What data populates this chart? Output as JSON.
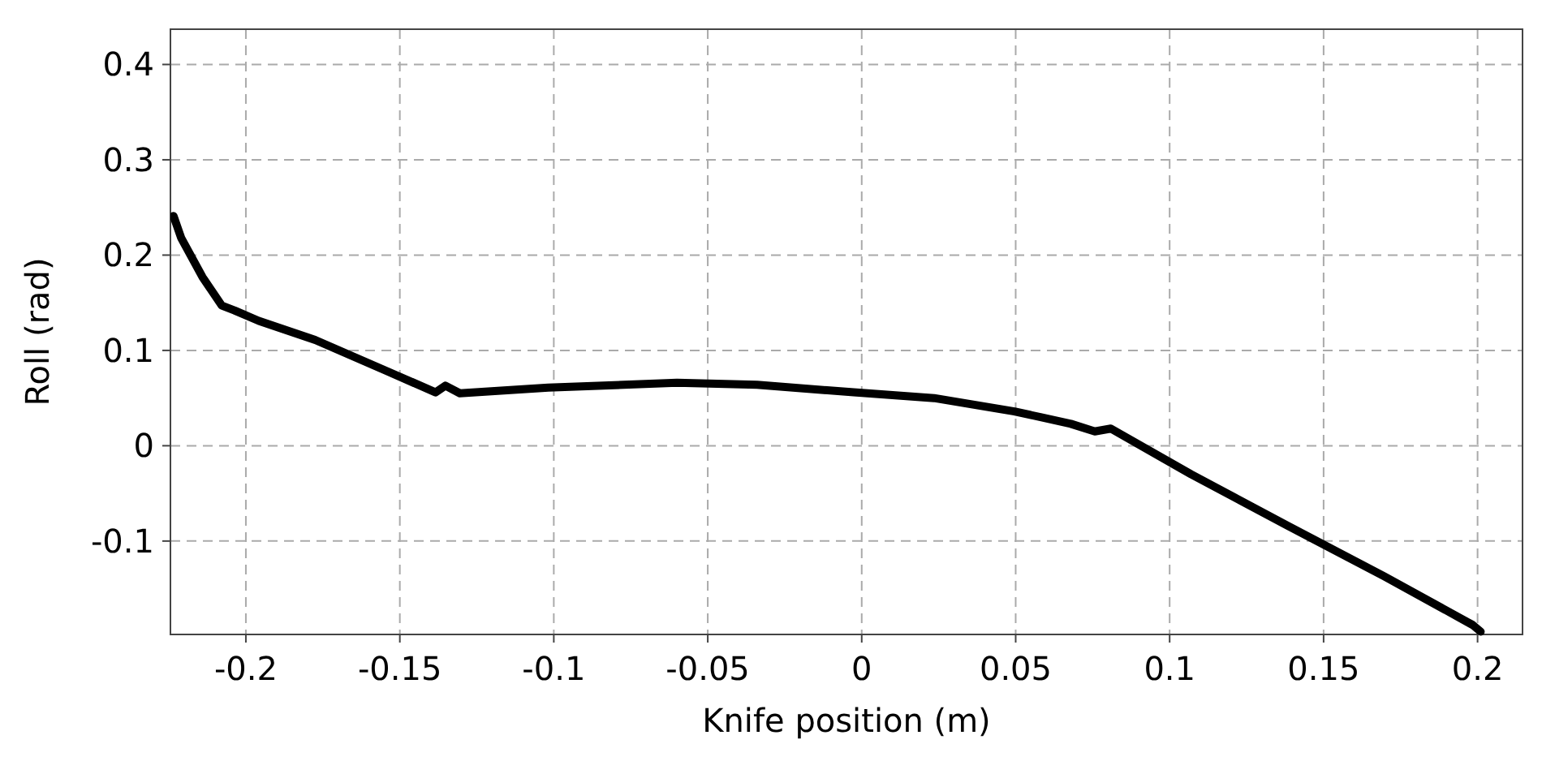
{
  "chart_data": {
    "type": "line",
    "xlabel": "Knife position (m)",
    "ylabel": "Roll (rad)",
    "xlim": [
      -0.2245,
      0.2146
    ],
    "ylim": [
      -0.198,
      0.437
    ],
    "xticks": [
      -0.2,
      -0.15,
      -0.1,
      -0.05,
      0,
      0.05,
      0.1,
      0.15,
      0.2
    ],
    "yticks": [
      -0.1,
      0,
      0.1,
      0.2,
      0.3,
      0.4
    ],
    "grid": true,
    "line_style": "solid",
    "series": [
      {
        "color": "#000000",
        "x": [
          -0.2235,
          -0.221,
          -0.2141,
          -0.2078,
          -0.2037,
          -0.1958,
          -0.1775,
          -0.154,
          -0.1384,
          -0.1352,
          -0.1305,
          -0.1018,
          -0.06,
          -0.034,
          -0.0026,
          0.0235,
          0.0496,
          0.0679,
          0.0757,
          0.0809,
          0.107,
          0.1384,
          0.1697,
          0.1984,
          0.201
        ],
        "values": [
          0.241,
          0.218,
          0.177,
          0.147,
          0.142,
          0.131,
          0.111,
          0.078,
          0.056,
          0.063,
          0.055,
          0.061,
          0.066,
          0.064,
          0.056,
          0.05,
          0.036,
          0.023,
          0.015,
          0.018,
          -0.03,
          -0.084,
          -0.137,
          -0.188,
          -0.195
        ]
      }
    ]
  }
}
